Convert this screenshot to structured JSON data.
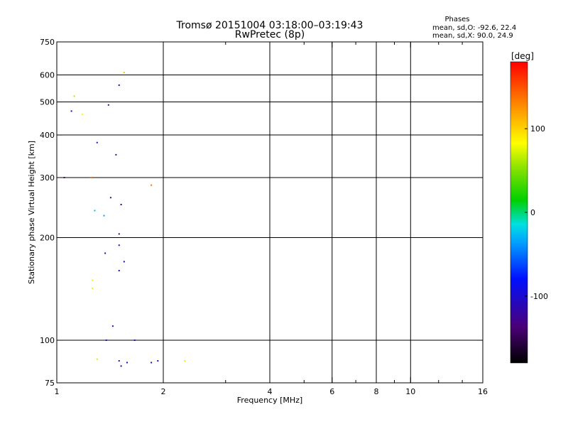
{
  "chart_data": {
    "type": "scatter",
    "title": "Tromsø 20151004 03:18:00–03:19:43",
    "subtitle": "RwPretec (8p)",
    "xlabel": "Frequency [MHz]",
    "ylabel": "Stationary phase Virtual Height [km]",
    "x_scale": "log",
    "y_scale": "log",
    "xlim": [
      1,
      16
    ],
    "ylim": [
      75,
      750
    ],
    "x_ticks": [
      1,
      2,
      4,
      6,
      8,
      10,
      16
    ],
    "x_minor_ticks": [
      3,
      5,
      7,
      9,
      12,
      14
    ],
    "y_ticks": [
      75,
      100,
      200,
      300,
      400,
      500,
      600,
      750
    ],
    "x_major_gridlines": [
      2,
      4,
      6,
      8,
      10
    ],
    "y_major_gridlines": [
      100,
      200,
      300,
      400,
      500,
      600
    ],
    "grid": true,
    "legend_header": "Phases",
    "legend_lines": [
      "mean, sd,O: -92.6, 22.4",
      "mean, sd,X:  90.0, 24.9"
    ],
    "colorbar": {
      "label": "[deg]",
      "ticks": [
        100,
        0,
        -100
      ],
      "range": [
        -180,
        180
      ],
      "position": "right"
    },
    "point_clusters": [
      {
        "x": 1.1,
        "y": 470,
        "phase": -110
      },
      {
        "x": 1.12,
        "y": 520,
        "phase": 60
      },
      {
        "x": 1.18,
        "y": 460,
        "phase": 90
      },
      {
        "x": 1.3,
        "y": 380,
        "phase": -100
      },
      {
        "x": 1.4,
        "y": 490,
        "phase": -120
      },
      {
        "x": 1.5,
        "y": 560,
        "phase": -110
      },
      {
        "x": 1.55,
        "y": 610,
        "phase": 110
      },
      {
        "x": 1.47,
        "y": 350,
        "phase": -130
      },
      {
        "x": 1.05,
        "y": 300,
        "phase": -140
      },
      {
        "x": 1.25,
        "y": 300,
        "phase": 140
      },
      {
        "x": 1.85,
        "y": 285,
        "phase": 140
      },
      {
        "x": 1.42,
        "y": 262,
        "phase": -120
      },
      {
        "x": 1.28,
        "y": 240,
        "phase": -30
      },
      {
        "x": 1.36,
        "y": 232,
        "phase": -40
      },
      {
        "x": 1.52,
        "y": 250,
        "phase": -120
      },
      {
        "x": 1.5,
        "y": 205,
        "phase": -140
      },
      {
        "x": 1.5,
        "y": 190,
        "phase": -100
      },
      {
        "x": 1.37,
        "y": 180,
        "phase": -130
      },
      {
        "x": 1.55,
        "y": 170,
        "phase": -120
      },
      {
        "x": 1.5,
        "y": 160,
        "phase": -100
      },
      {
        "x": 1.26,
        "y": 150,
        "phase": 90
      },
      {
        "x": 1.26,
        "y": 142,
        "phase": 80
      },
      {
        "x": 1.44,
        "y": 110,
        "phase": -110
      },
      {
        "x": 1.38,
        "y": 100,
        "phase": -110
      },
      {
        "x": 1.66,
        "y": 100,
        "phase": -110
      },
      {
        "x": 1.5,
        "y": 87,
        "phase": -100
      },
      {
        "x": 1.52,
        "y": 84,
        "phase": -110
      },
      {
        "x": 1.58,
        "y": 86,
        "phase": -110
      },
      {
        "x": 1.3,
        "y": 88,
        "phase": 70
      },
      {
        "x": 1.85,
        "y": 86,
        "phase": -120
      },
      {
        "x": 1.93,
        "y": 87,
        "phase": -110
      },
      {
        "x": 2.3,
        "y": 87,
        "phase": 80
      }
    ]
  }
}
